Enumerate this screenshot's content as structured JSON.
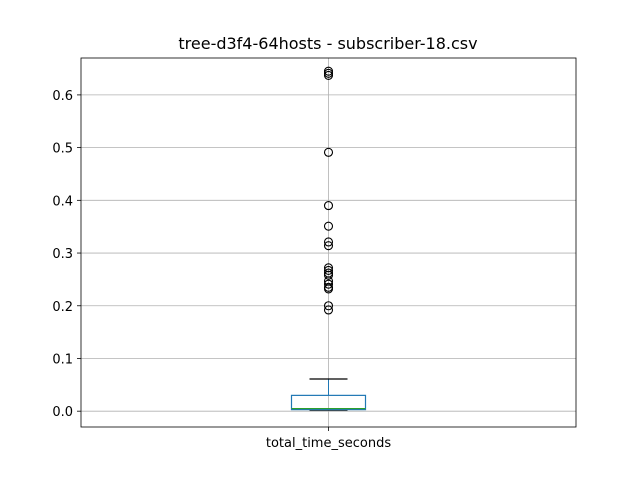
{
  "chart_data": {
    "type": "box",
    "title": "tree-d3f4-64hosts - subscriber-18.csv",
    "categories": [
      "total_time_seconds"
    ],
    "ylim": [
      -0.03,
      0.67
    ],
    "yticks": [
      0.0,
      0.1,
      0.2,
      0.3,
      0.4,
      0.5,
      0.6
    ],
    "ytick_labels": [
      "0.0",
      "0.1",
      "0.2",
      "0.3",
      "0.4",
      "0.5",
      "0.6"
    ],
    "grid": true,
    "box": {
      "whisker_low": 0.002,
      "q1": 0.003,
      "median": 0.005,
      "q3": 0.03,
      "whisker_high": 0.061
    },
    "outliers": [
      0.645,
      0.641,
      0.637,
      0.491,
      0.39,
      0.351,
      0.321,
      0.314,
      0.272,
      0.267,
      0.262,
      0.258,
      0.247,
      0.241,
      0.235,
      0.232,
      0.2,
      0.192
    ],
    "colors": {
      "box": "#1f77b4",
      "median": "#2ca02c",
      "whisker": "#000000",
      "grid": "#b0b0b0",
      "axes": "#000000"
    }
  }
}
